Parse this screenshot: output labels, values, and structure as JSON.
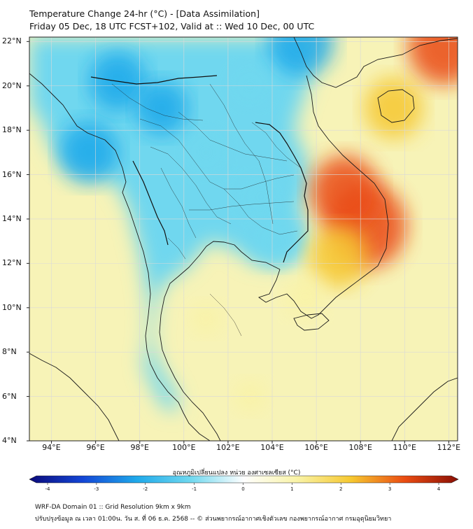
{
  "header": {
    "title_line1": "Temperature Change 24-hr (°C) - [Data Assimilation]",
    "title_line2": "Friday 05 Dec, 18 UTC FCST+102, Valid at :: Wed 10 Dec, 00 UTC"
  },
  "map": {
    "lat_labels": [
      "22°N",
      "20°N",
      "18°N",
      "16°N",
      "14°N",
      "12°N",
      "10°N",
      "8°N",
      "6°N",
      "4°N"
    ],
    "lon_labels": [
      "94°E",
      "96°E",
      "98°E",
      "100°E",
      "102°E",
      "104°E",
      "106°E",
      "108°E",
      "110°E",
      "112°E"
    ],
    "lat_range": [
      4,
      22.2
    ],
    "lon_range": [
      93.0,
      112.4
    ],
    "field": [
      {
        "lon": 105.3,
        "lat": 22.0,
        "anomaly": -2.4
      },
      {
        "lon": 95.7,
        "lat": 17.0,
        "anomaly": -2.0
      },
      {
        "lon": 97.0,
        "lat": 20.2,
        "anomaly": -1.9
      },
      {
        "lon": 99.0,
        "lat": 19.0,
        "anomaly": -1.6
      },
      {
        "lon": 101.0,
        "lat": 17.0,
        "anomaly": -1.2
      },
      {
        "lon": 103.5,
        "lat": 15.0,
        "anomaly": -1.1
      },
      {
        "lon": 104.2,
        "lat": 13.0,
        "anomaly": -1.3
      },
      {
        "lon": 103.0,
        "lat": 20.0,
        "anomaly": -1.0
      },
      {
        "lon": 108.3,
        "lat": 13.7,
        "anomaly": 3.2
      },
      {
        "lon": 107.3,
        "lat": 15.2,
        "anomaly": 2.6
      },
      {
        "lon": 107.0,
        "lat": 12.3,
        "anomaly": 2.0
      },
      {
        "lon": 109.5,
        "lat": 19.0,
        "anomaly": 2.0
      },
      {
        "lon": 111.8,
        "lat": 21.8,
        "anomaly": 2.8
      },
      {
        "lon": 105.5,
        "lat": 10.5,
        "anomaly": 0.9
      },
      {
        "lon": 101.0,
        "lat": 9.5,
        "anomaly": 0.5
      },
      {
        "lon": 103.0,
        "lat": 6.0,
        "anomaly": 0.5
      }
    ],
    "land_color": "#6fd7ef",
    "sea_color": "#f7f3b7"
  },
  "colorbar": {
    "title": "อุณหภูมิเปลี่ยนแปลง หน่วย องศาเซลเซียส (°C)",
    "ticks": [
      "-4",
      "-3",
      "-2",
      "-1",
      "0",
      "1",
      "2",
      "3",
      "4"
    ],
    "stops": [
      "#0b0a7a",
      "#1346d6",
      "#1fa9ea",
      "#6fd8ef",
      "#ffffff",
      "#f9f3a6",
      "#f6c830",
      "#ea4c12",
      "#8a0f05"
    ]
  },
  "footer": {
    "line1": "WRF-DA Domain 01 :: Grid Resolution 9km x 9km",
    "line2": "ปรับปรุงข้อมูล ณ เวลา 01:00น. วัน ส. ที่ 06 ธ.ค. 2568 -- © ส่วนพยากรณ์อากาศเชิงตัวเลข กองพยากรณ์อากาศ กรมอุตุนิยมวิทยา"
  }
}
